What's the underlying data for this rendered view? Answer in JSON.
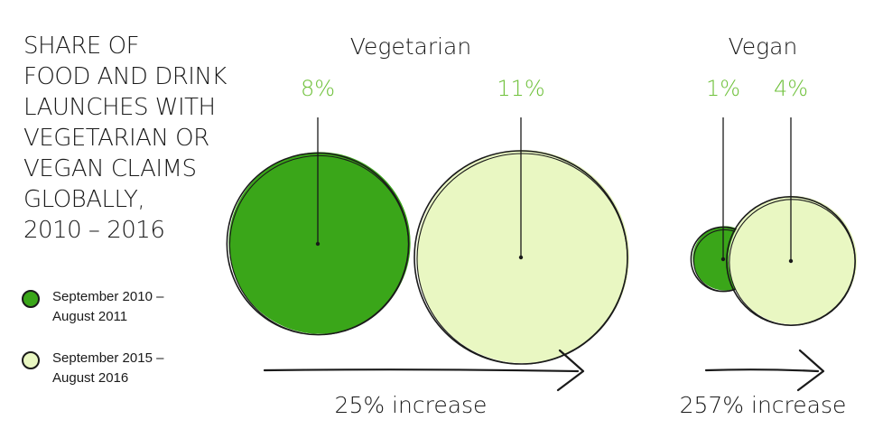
{
  "title": "SHARE OF\nFOOD AND DRINK\nLAUNCHES WITH\nVEGETARIAN OR\nVEGAN CLAIMS\nGLOBALLY,\n2010 – 2016",
  "legend": [
    {
      "label": "September 2010 – August 2011",
      "color": "#3aa619"
    },
    {
      "label": "September 2015 – August 2016",
      "color": "#e9f7c2"
    }
  ],
  "colors": {
    "period1": "#3aa619",
    "period2": "#e9f7c2",
    "pct_text": "#6fc13b",
    "outline": "#1a1a1a"
  },
  "chart_data": {
    "type": "bubble",
    "title": "SHARE OF FOOD AND DRINK LAUNCHES WITH VEGETARIAN OR VEGAN CLAIMS GLOBALLY, 2010 – 2016",
    "series": [
      {
        "name": "September 2010 – August 2011"
      },
      {
        "name": "September 2015 – August 2016"
      }
    ],
    "groups": [
      {
        "name": "Vegetarian",
        "values": [
          8,
          11
        ],
        "labels": [
          "8%",
          "11%"
        ],
        "increase": "25% increase"
      },
      {
        "name": "Vegan",
        "values": [
          1,
          4
        ],
        "labels": [
          "1%",
          "4%"
        ],
        "increase": "257% increase"
      }
    ],
    "unit": "%"
  }
}
